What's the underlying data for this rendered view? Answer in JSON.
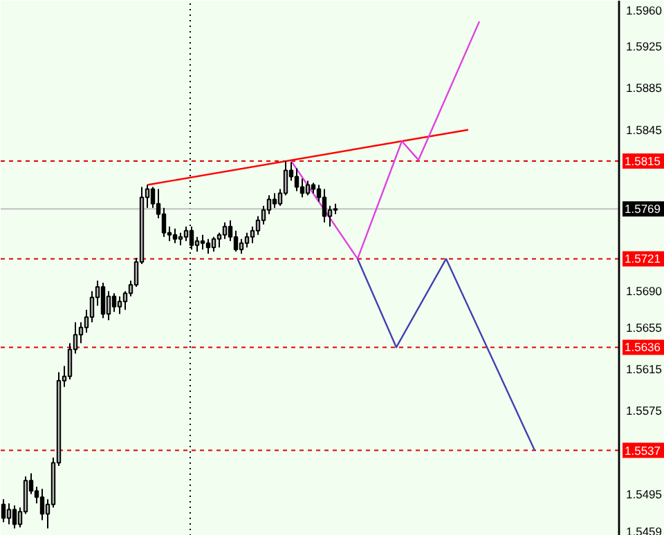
{
  "chart_data": {
    "type": "candlestick",
    "categories": [
      null,
      null,
      null,
      null,
      null,
      null,
      null,
      null,
      null,
      null,
      null,
      null,
      null,
      null,
      null,
      null,
      null,
      null,
      null,
      null,
      null,
      null,
      null,
      null,
      null,
      null,
      null,
      null,
      null,
      null,
      null,
      null,
      null,
      null,
      null,
      null,
      null,
      null,
      null,
      null,
      null,
      null,
      null,
      null,
      null,
      null,
      null,
      null,
      null,
      null,
      null,
      null,
      null,
      null,
      null,
      null,
      null,
      null,
      null,
      null,
      null,
      null,
      null,
      null,
      null,
      null,
      null,
      null,
      null,
      null,
      null,
      null,
      null,
      null,
      null,
      null,
      null,
      null,
      null,
      null,
      null,
      null,
      null,
      null,
      null,
      null,
      null,
      null,
      null,
      null,
      null,
      null,
      null,
      null,
      null,
      null,
      null,
      null,
      null,
      null,
      null,
      null,
      null,
      null,
      null,
      null,
      null,
      null,
      null,
      null,
      null,
      null,
      null,
      null,
      null,
      null,
      null,
      null,
      null,
      null
    ],
    "ohlc": [
      [
        1.5485,
        1.549,
        1.5468,
        1.5472
      ],
      [
        1.5472,
        1.5486,
        1.5466,
        1.548
      ],
      [
        1.548,
        1.5484,
        1.5462,
        1.5466
      ],
      [
        1.5466,
        1.5482,
        1.5463,
        1.5478
      ],
      [
        1.5478,
        1.5512,
        1.5476,
        1.5508
      ],
      [
        1.5508,
        1.5515,
        1.5495,
        1.5498
      ],
      [
        1.5498,
        1.5502,
        1.5486,
        1.5492
      ],
      [
        1.5492,
        1.55,
        1.547,
        1.5476
      ],
      [
        1.5476,
        1.549,
        1.5462,
        1.5485
      ],
      [
        1.5485,
        1.553,
        1.5482,
        1.5525
      ],
      [
        1.5525,
        1.5612,
        1.5522,
        1.5604
      ],
      [
        1.5604,
        1.5618,
        1.5598,
        1.5608
      ],
      [
        1.5608,
        1.564,
        1.5605,
        1.5634
      ],
      [
        1.5634,
        1.566,
        1.563,
        1.5648
      ],
      [
        1.5648,
        1.566,
        1.564,
        1.5655
      ],
      [
        1.5655,
        1.5672,
        1.565,
        1.5665
      ],
      [
        1.5665,
        1.569,
        1.566,
        1.5684
      ],
      [
        1.5684,
        1.57,
        1.5676,
        1.5694
      ],
      [
        1.5694,
        1.5698,
        1.5664,
        1.5668
      ],
      [
        1.5668,
        1.569,
        1.5662,
        1.5685
      ],
      [
        1.5685,
        1.5688,
        1.567,
        1.5675
      ],
      [
        1.5675,
        1.5685,
        1.5668,
        1.568
      ],
      [
        1.568,
        1.569,
        1.5672,
        1.5688
      ],
      [
        1.5688,
        1.57,
        1.5685,
        1.5696
      ],
      [
        1.5696,
        1.5722,
        1.5694,
        1.5718
      ],
      [
        1.5718,
        1.579,
        1.5716,
        1.578
      ],
      [
        1.578,
        1.5792,
        1.577,
        1.5788
      ],
      [
        1.5788,
        1.579,
        1.577,
        1.5774
      ],
      [
        1.5774,
        1.5788,
        1.576,
        1.5764
      ],
      [
        1.5764,
        1.577,
        1.5742,
        1.5746
      ],
      [
        1.5746,
        1.5752,
        1.5738,
        1.5744
      ],
      [
        1.5744,
        1.575,
        1.5736,
        1.574
      ],
      [
        1.574,
        1.5746,
        1.5734,
        1.5742
      ],
      [
        1.5742,
        1.5752,
        1.5738,
        1.5748
      ],
      [
        1.5748,
        1.5752,
        1.573,
        1.5734
      ],
      [
        1.5734,
        1.5742,
        1.5728,
        1.5738
      ],
      [
        1.5738,
        1.5744,
        1.573,
        1.5736
      ],
      [
        1.5736,
        1.574,
        1.5726,
        1.5732
      ],
      [
        1.5732,
        1.5742,
        1.5728,
        1.574
      ],
      [
        1.574,
        1.5746,
        1.5732,
        1.5744
      ],
      [
        1.5744,
        1.5756,
        1.574,
        1.5752
      ],
      [
        1.5752,
        1.5758,
        1.5738,
        1.5742
      ],
      [
        1.5742,
        1.5748,
        1.5728,
        1.573
      ],
      [
        1.573,
        1.574,
        1.5726,
        1.5736
      ],
      [
        1.5736,
        1.5746,
        1.5732,
        1.5742
      ],
      [
        1.5742,
        1.5752,
        1.5736,
        1.5748
      ],
      [
        1.5748,
        1.5762,
        1.5744,
        1.5758
      ],
      [
        1.5758,
        1.5772,
        1.5754,
        1.5768
      ],
      [
        1.5768,
        1.5782,
        1.5764,
        1.5778
      ],
      [
        1.5778,
        1.5784,
        1.577,
        1.5774
      ],
      [
        1.5774,
        1.5788,
        1.5772,
        1.5784
      ],
      [
        1.5784,
        1.5815,
        1.5782,
        1.5806
      ],
      [
        1.5806,
        1.5814,
        1.5796,
        1.58
      ],
      [
        1.58,
        1.5808,
        1.5786,
        1.579
      ],
      [
        1.579,
        1.5798,
        1.578,
        1.5784
      ],
      [
        1.5784,
        1.5796,
        1.5782,
        1.5792
      ],
      [
        1.5792,
        1.5794,
        1.5784,
        1.5788
      ],
      [
        1.5788,
        1.5792,
        1.5776,
        1.578
      ],
      [
        1.578,
        1.5788,
        1.5756,
        1.5762
      ],
      [
        1.5762,
        1.5772,
        1.5752,
        1.5768
      ],
      [
        1.5768,
        1.5774,
        1.5764,
        1.5769
      ],
      null,
      null,
      null,
      null,
      null,
      null,
      null,
      null,
      null,
      null,
      null,
      null,
      null,
      null,
      null,
      null,
      null,
      null,
      null,
      null,
      null,
      null,
      null,
      null,
      null,
      null,
      null,
      null,
      null,
      null,
      null,
      null,
      null,
      null,
      null,
      null,
      null,
      null,
      null,
      null,
      null,
      null,
      null,
      null,
      null,
      null,
      null,
      null,
      null,
      null,
      null,
      null,
      null,
      null,
      null,
      null,
      null,
      null,
      null
    ],
    "series": [
      {
        "type": "line",
        "color": "#ff0000",
        "values": [
          null,
          null,
          null,
          null,
          null,
          null,
          null,
          null,
          null,
          null,
          null,
          null,
          null,
          null,
          null,
          null,
          null,
          null,
          null,
          null,
          null,
          null,
          null,
          null,
          null,
          null,
          1.5792,
          null,
          null,
          null,
          null,
          null,
          null,
          null,
          null,
          null,
          null,
          null,
          null,
          null,
          null,
          null,
          null,
          null,
          null,
          null,
          null,
          null,
          null,
          null,
          null,
          null,
          null,
          null,
          null,
          null,
          null,
          null,
          null,
          null,
          null,
          null,
          null,
          null,
          null,
          null,
          null,
          null,
          null,
          null,
          null,
          null,
          null,
          null,
          null,
          null,
          null,
          null,
          null,
          null,
          null,
          null,
          null,
          null,
          1.5845,
          null,
          null,
          null,
          null,
          null,
          null,
          null,
          null,
          null,
          null,
          null,
          null,
          null,
          null,
          null,
          null,
          null,
          null,
          null,
          null,
          null,
          null,
          null,
          null,
          null,
          null,
          null,
          null,
          null,
          null,
          null,
          null,
          null,
          null,
          null
        ]
      },
      {
        "type": "line",
        "color": "#e040e0",
        "values": [
          null,
          null,
          null,
          null,
          null,
          null,
          null,
          null,
          null,
          null,
          null,
          null,
          null,
          null,
          null,
          null,
          null,
          null,
          null,
          null,
          null,
          null,
          null,
          null,
          null,
          null,
          null,
          null,
          null,
          null,
          null,
          null,
          null,
          null,
          null,
          null,
          null,
          null,
          null,
          null,
          null,
          null,
          null,
          null,
          null,
          null,
          null,
          null,
          null,
          null,
          null,
          null,
          1.5815,
          null,
          null,
          null,
          null,
          null,
          null,
          null,
          null,
          null,
          null,
          null,
          1.5721,
          null,
          null,
          null,
          null,
          null,
          null,
          null,
          1.5834,
          null,
          null,
          1.5816,
          null,
          null,
          null,
          null,
          null,
          null,
          null,
          null,
          null,
          null,
          1.5949,
          null,
          null,
          null,
          null,
          null,
          null,
          null,
          null,
          null,
          null,
          null,
          null,
          null,
          null,
          null,
          null,
          null,
          null,
          null,
          null,
          null,
          null,
          null,
          null,
          null,
          null,
          null,
          null,
          null,
          null,
          null,
          null,
          null
        ]
      },
      {
        "type": "line",
        "color": "#4040b0",
        "values": [
          null,
          null,
          null,
          null,
          null,
          null,
          null,
          null,
          null,
          null,
          null,
          null,
          null,
          null,
          null,
          null,
          null,
          null,
          null,
          null,
          null,
          null,
          null,
          null,
          null,
          null,
          null,
          null,
          null,
          null,
          null,
          null,
          null,
          null,
          null,
          null,
          null,
          null,
          null,
          null,
          null,
          null,
          null,
          null,
          null,
          null,
          null,
          null,
          null,
          null,
          null,
          null,
          null,
          null,
          null,
          null,
          null,
          null,
          null,
          null,
          null,
          null,
          null,
          null,
          1.5721,
          null,
          null,
          null,
          null,
          null,
          null,
          1.5636,
          null,
          null,
          null,
          null,
          null,
          null,
          null,
          null,
          1.5721,
          null,
          null,
          null,
          null,
          null,
          null,
          null,
          null,
          null,
          null,
          null,
          null,
          null,
          null,
          null,
          1.5537,
          null,
          null,
          null,
          null,
          null,
          null,
          null,
          null,
          null,
          null,
          null,
          null,
          null,
          null,
          null,
          null,
          null,
          null,
          null,
          null,
          null,
          null,
          null
        ]
      }
    ],
    "ylim": [
      1.5455,
      1.5969
    ],
    "yticks": [
      {
        "value": 1.596,
        "label": "1.5960"
      },
      {
        "value": 1.5925,
        "label": "1.5925"
      },
      {
        "value": 1.5885,
        "label": "1.5885"
      },
      {
        "value": 1.5845,
        "label": "1.5845"
      },
      {
        "value": 1.569,
        "label": "1.5690"
      },
      {
        "value": 1.5655,
        "label": "1.5655"
      },
      {
        "value": 1.5615,
        "label": "1.5615"
      },
      {
        "value": 1.5575,
        "label": "1.5575"
      },
      {
        "value": 1.5495,
        "label": "1.5495"
      },
      {
        "value": 1.5459,
        "label": "1.5459"
      }
    ],
    "tick_labels": "y",
    "grid": false,
    "ref_lines": [
      {
        "axis": "y",
        "value": 1.5815,
        "label": "1.5815",
        "color": "#e00000",
        "line_style": "dashed"
      },
      {
        "axis": "y",
        "value": 1.5721,
        "label": "1.5721",
        "color": "#e00000",
        "line_style": "dashed"
      },
      {
        "axis": "y",
        "value": 1.5636,
        "label": "1.5636",
        "color": "#e00000",
        "line_style": "dashed"
      },
      {
        "axis": "y",
        "value": 1.5537,
        "label": "1.5537",
        "color": "#e00000",
        "line_style": "dashed"
      },
      {
        "axis": "y",
        "value": 1.5769,
        "label": "1.5769",
        "color": "#c0c0c0",
        "line_style": "solid"
      }
    ]
  }
}
